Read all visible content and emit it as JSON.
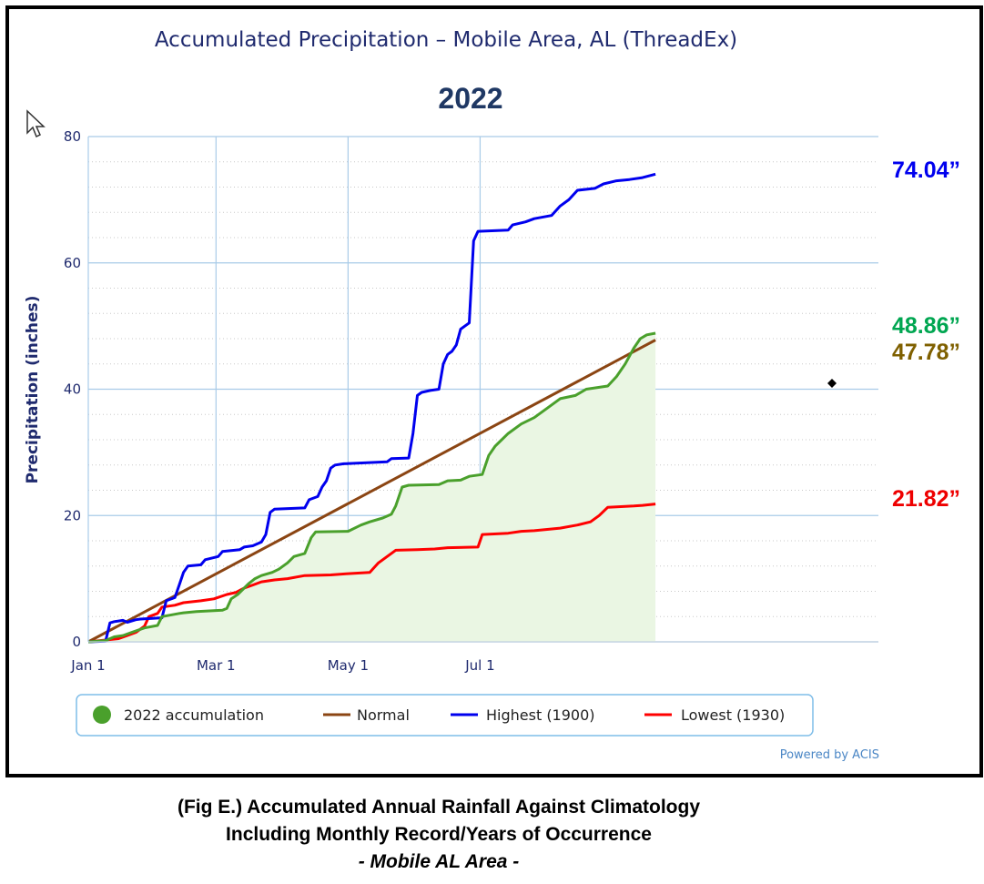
{
  "chart_data": {
    "type": "line",
    "title": "Accumulated Precipitation – Mobile Area, AL (ThreadEx)",
    "subtitle": "2022",
    "ylabel": "Precipitation (inches)",
    "xlabel": "",
    "ylim": [
      0,
      80
    ],
    "yticks": [
      0,
      20,
      40,
      60,
      80
    ],
    "xlim": [
      0,
      365
    ],
    "xticks": [
      {
        "day": 0,
        "label": "Jan 1"
      },
      {
        "day": 59,
        "label": "Mar 1"
      },
      {
        "day": 120,
        "label": "May 1"
      },
      {
        "day": 181,
        "label": "Jul 1"
      }
    ],
    "grid": true,
    "legend_position": "bottom",
    "x_unit": "day of year (0 = Jan 1)",
    "series": [
      {
        "name": "2022 accumulation",
        "color": "#4aa02c",
        "fill": "#eaf6e3",
        "end_label": "48.86”",
        "end_label_color": "#00a651",
        "points": [
          [
            0,
            0
          ],
          [
            8,
            0.2
          ],
          [
            12,
            0.8
          ],
          [
            16,
            1.0
          ],
          [
            20,
            1.5
          ],
          [
            26,
            2.2
          ],
          [
            32,
            2.6
          ],
          [
            34,
            4.0
          ],
          [
            42,
            4.5
          ],
          [
            44,
            4.6
          ],
          [
            50,
            4.8
          ],
          [
            56,
            4.9
          ],
          [
            62,
            5.0
          ],
          [
            64,
            5.3
          ],
          [
            66,
            6.8
          ],
          [
            69,
            7.5
          ],
          [
            72,
            8.5
          ],
          [
            74,
            9.2
          ],
          [
            77,
            10.0
          ],
          [
            80,
            10.5
          ],
          [
            85,
            11.0
          ],
          [
            88,
            11.5
          ],
          [
            92,
            12.5
          ],
          [
            95,
            13.5
          ],
          [
            100,
            14.0
          ],
          [
            103,
            16.5
          ],
          [
            105,
            17.4
          ],
          [
            120,
            17.5
          ],
          [
            126,
            18.5
          ],
          [
            130,
            19.0
          ],
          [
            136,
            19.6
          ],
          [
            140,
            20.2
          ],
          [
            142,
            21.5
          ],
          [
            145,
            24.5
          ],
          [
            148,
            24.8
          ],
          [
            162,
            24.9
          ],
          [
            166,
            25.5
          ],
          [
            172,
            25.6
          ],
          [
            176,
            26.2
          ],
          [
            182,
            26.5
          ],
          [
            185,
            29.5
          ],
          [
            188,
            31.0
          ],
          [
            191,
            32.0
          ],
          [
            194,
            33.0
          ],
          [
            200,
            34.5
          ],
          [
            206,
            35.5
          ],
          [
            212,
            37.0
          ],
          [
            218,
            38.5
          ],
          [
            225,
            39.0
          ],
          [
            230,
            40.0
          ],
          [
            240,
            40.5
          ],
          [
            244,
            42.0
          ],
          [
            248,
            44.0
          ],
          [
            252,
            46.5
          ],
          [
            255,
            48.0
          ],
          [
            258,
            48.6
          ],
          [
            262,
            48.86
          ]
        ]
      },
      {
        "name": "Normal",
        "color": "#8b4513",
        "end_label": "47.78”",
        "end_label_color": "#7f6000",
        "points": [
          [
            0,
            0
          ],
          [
            262,
            47.78
          ]
        ]
      },
      {
        "name": "Highest (1900)",
        "color": "#0000ee",
        "end_label": "74.04”",
        "end_label_color": "#0000ee",
        "points": [
          [
            0,
            0
          ],
          [
            8,
            0.1
          ],
          [
            10,
            3.0
          ],
          [
            12,
            3.2
          ],
          [
            16,
            3.4
          ],
          [
            18,
            3.1
          ],
          [
            22,
            3.5
          ],
          [
            24,
            3.6
          ],
          [
            34,
            3.8
          ],
          [
            36,
            6.5
          ],
          [
            40,
            7.0
          ],
          [
            42,
            9.0
          ],
          [
            44,
            11.0
          ],
          [
            46,
            12.0
          ],
          [
            52,
            12.2
          ],
          [
            54,
            13.0
          ],
          [
            60,
            13.5
          ],
          [
            62,
            14.3
          ],
          [
            70,
            14.6
          ],
          [
            72,
            15.0
          ],
          [
            76,
            15.2
          ],
          [
            80,
            15.8
          ],
          [
            82,
            17.0
          ],
          [
            84,
            20.5
          ],
          [
            86,
            21.0
          ],
          [
            100,
            21.2
          ],
          [
            102,
            22.5
          ],
          [
            106,
            23.0
          ],
          [
            108,
            24.5
          ],
          [
            110,
            25.5
          ],
          [
            112,
            27.5
          ],
          [
            114,
            28.0
          ],
          [
            118,
            28.2
          ],
          [
            138,
            28.5
          ],
          [
            140,
            29.0
          ],
          [
            148,
            29.1
          ],
          [
            150,
            33.0
          ],
          [
            152,
            39.0
          ],
          [
            154,
            39.5
          ],
          [
            158,
            39.8
          ],
          [
            162,
            40.0
          ],
          [
            164,
            44.0
          ],
          [
            166,
            45.5
          ],
          [
            168,
            46.0
          ],
          [
            170,
            47.0
          ],
          [
            172,
            49.5
          ],
          [
            174,
            50.0
          ],
          [
            176,
            50.5
          ],
          [
            178,
            63.5
          ],
          [
            180,
            65.0
          ],
          [
            194,
            65.2
          ],
          [
            196,
            66.0
          ],
          [
            202,
            66.5
          ],
          [
            206,
            67.0
          ],
          [
            214,
            67.5
          ],
          [
            218,
            69.0
          ],
          [
            222,
            70.0
          ],
          [
            226,
            71.5
          ],
          [
            234,
            71.8
          ],
          [
            238,
            72.5
          ],
          [
            244,
            73.0
          ],
          [
            250,
            73.2
          ],
          [
            256,
            73.5
          ],
          [
            262,
            74.04
          ]
        ]
      },
      {
        "name": "Lowest (1930)",
        "color": "#ff0000",
        "end_label": "21.82”",
        "end_label_color": "#ee0000",
        "points": [
          [
            0,
            0
          ],
          [
            14,
            0.5
          ],
          [
            18,
            1.0
          ],
          [
            22,
            1.5
          ],
          [
            26,
            2.5
          ],
          [
            28,
            4.0
          ],
          [
            32,
            4.5
          ],
          [
            34,
            5.5
          ],
          [
            40,
            5.8
          ],
          [
            44,
            6.2
          ],
          [
            52,
            6.5
          ],
          [
            58,
            6.8
          ],
          [
            64,
            7.5
          ],
          [
            68,
            7.8
          ],
          [
            72,
            8.5
          ],
          [
            76,
            9.0
          ],
          [
            80,
            9.5
          ],
          [
            86,
            9.8
          ],
          [
            92,
            10.0
          ],
          [
            100,
            10.5
          ],
          [
            112,
            10.6
          ],
          [
            120,
            10.8
          ],
          [
            130,
            11.0
          ],
          [
            134,
            12.5
          ],
          [
            140,
            14.0
          ],
          [
            142,
            14.5
          ],
          [
            152,
            14.6
          ],
          [
            160,
            14.7
          ],
          [
            166,
            14.9
          ],
          [
            180,
            15.0
          ],
          [
            182,
            17.0
          ],
          [
            194,
            17.2
          ],
          [
            200,
            17.5
          ],
          [
            206,
            17.6
          ],
          [
            212,
            17.8
          ],
          [
            218,
            18.0
          ],
          [
            226,
            18.5
          ],
          [
            232,
            19.0
          ],
          [
            236,
            20.0
          ],
          [
            240,
            21.3
          ],
          [
            252,
            21.5
          ],
          [
            256,
            21.6
          ],
          [
            262,
            21.82
          ]
        ]
      }
    ]
  },
  "credit": "Powered by ACIS",
  "caption": {
    "line1": "(Fig E.) Accumulated Annual Rainfall Against  Climatology",
    "line2": "Including Monthly Record/Years of Occurrence",
    "line3": "- Mobile AL Area -"
  },
  "icons": {
    "cursor": "cursor-arrow-icon",
    "marker": "diamond-marker-icon"
  }
}
